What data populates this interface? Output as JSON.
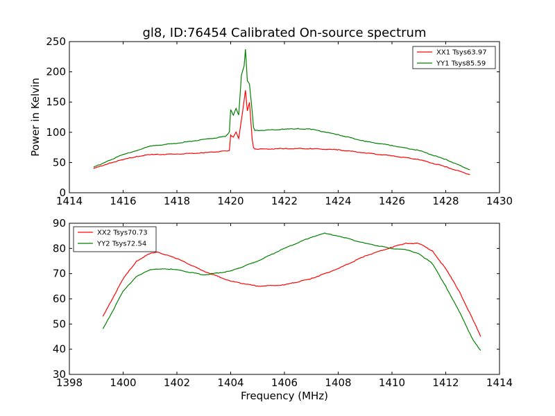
{
  "chart_data": [
    {
      "type": "line",
      "title": "gl8, ID:76454 Calibrated On-source spectrum",
      "xlabel": "",
      "ylabel": "Power in Kelvin",
      "xlim": [
        1414,
        1430
      ],
      "ylim": [
        0,
        250
      ],
      "xticks": [
        1414,
        1416,
        1418,
        1420,
        1422,
        1424,
        1426,
        1428,
        1430
      ],
      "yticks": [
        0,
        50,
        100,
        150,
        200,
        250
      ],
      "legend_position": "top-right",
      "grid": false,
      "series": [
        {
          "name": "XX1 Tsys63.97",
          "color": "#ff0000",
          "x": [
            1414.9,
            1415.5,
            1416.0,
            1416.5,
            1417.0,
            1418.0,
            1419.0,
            1419.8,
            1419.95,
            1420.0,
            1420.1,
            1420.2,
            1420.3,
            1420.45,
            1420.55,
            1420.62,
            1420.7,
            1420.8,
            1420.85,
            1420.9,
            1421.0,
            1422.0,
            1423.0,
            1424.0,
            1425.0,
            1426.0,
            1427.0,
            1428.0,
            1428.9
          ],
          "y": [
            40,
            49,
            55,
            60,
            63,
            64,
            66,
            69,
            70,
            95,
            92,
            100,
            90,
            135,
            170,
            135,
            150,
            88,
            75,
            72,
            72,
            73,
            73,
            71,
            66,
            61,
            55,
            43,
            30
          ]
        },
        {
          "name": "YY1 Tsys85.59",
          "color": "#008000",
          "x": [
            1414.9,
            1415.5,
            1416.0,
            1416.5,
            1417.0,
            1418.0,
            1419.0,
            1419.8,
            1419.95,
            1420.0,
            1420.1,
            1420.2,
            1420.3,
            1420.4,
            1420.5,
            1420.55,
            1420.62,
            1420.7,
            1420.8,
            1420.85,
            1420.9,
            1421.0,
            1422.0,
            1422.5,
            1423.0,
            1424.0,
            1425.0,
            1426.0,
            1427.0,
            1428.0,
            1428.9
          ],
          "y": [
            42,
            54,
            63,
            70,
            77,
            82,
            88,
            93,
            100,
            138,
            128,
            140,
            128,
            195,
            210,
            238,
            185,
            180,
            135,
            108,
            103,
            103,
            105,
            106,
            105,
            96,
            85,
            78,
            70,
            55,
            38
          ]
        }
      ]
    },
    {
      "type": "line",
      "title": "",
      "xlabel": "Frequency (MHz)",
      "ylabel": "",
      "xlim": [
        1398,
        1414
      ],
      "ylim": [
        30,
        90
      ],
      "xticks": [
        1398,
        1400,
        1402,
        1404,
        1406,
        1408,
        1410,
        1412,
        1414
      ],
      "yticks": [
        30,
        40,
        50,
        60,
        70,
        80,
        90
      ],
      "legend_position": "top-left",
      "grid": false,
      "series": [
        {
          "name": "XX2 Tsys70.73",
          "color": "#ff0000",
          "x": [
            1399.25,
            1399.5,
            1400.0,
            1400.5,
            1401.0,
            1401.3,
            1402.0,
            1403.0,
            1404.0,
            1405.0,
            1406.0,
            1407.0,
            1408.0,
            1409.0,
            1410.0,
            1410.5,
            1411.0,
            1411.5,
            1412.0,
            1412.5,
            1413.0,
            1413.3
          ],
          "y": [
            53,
            58,
            68,
            75,
            78,
            78.5,
            76,
            71,
            67,
            65,
            65.5,
            68,
            72,
            77,
            80.5,
            82,
            82,
            79,
            72,
            63,
            52,
            45
          ]
        },
        {
          "name": "YY2 Tsys72.54",
          "color": "#008000",
          "x": [
            1399.25,
            1399.5,
            1400.0,
            1400.5,
            1401.0,
            1401.5,
            1402.0,
            1403.0,
            1404.0,
            1405.0,
            1406.0,
            1407.0,
            1407.5,
            1408.0,
            1409.0,
            1410.0,
            1410.5,
            1411.0,
            1411.5,
            1412.0,
            1412.5,
            1413.0,
            1413.3
          ],
          "y": [
            48,
            53,
            63,
            69,
            71.5,
            72,
            71.5,
            69.5,
            71,
            75,
            80,
            84.5,
            86,
            85,
            82,
            80,
            79.5,
            78,
            74,
            65,
            55,
            44,
            39.5
          ]
        }
      ]
    }
  ]
}
